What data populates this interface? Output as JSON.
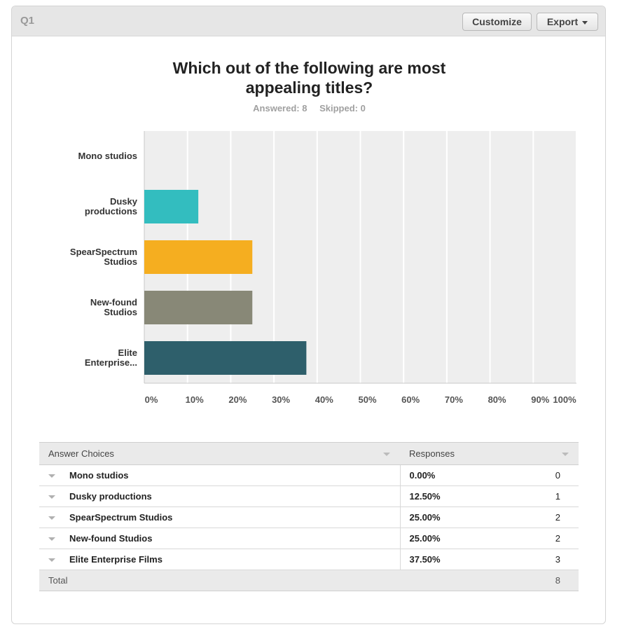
{
  "header": {
    "question_label": "Q1",
    "customize_label": "Customize",
    "export_label": "Export"
  },
  "question": {
    "title_line1": "Which out of the following are most",
    "title_line2": "appealing titles?",
    "answered": "Answered: 8",
    "skipped": "Skipped: 0"
  },
  "chart_data": {
    "type": "bar",
    "orientation": "horizontal",
    "categories": [
      [
        "Mono studios"
      ],
      [
        "Dusky",
        "productions"
      ],
      [
        "SpearSpectrum",
        "Studios"
      ],
      [
        "New-found",
        "Studios"
      ],
      [
        "Elite",
        "Enterprise..."
      ]
    ],
    "values": [
      0,
      12.5,
      25,
      25,
      37.5
    ],
    "colors": [
      "#3fbfbf",
      "#33bdbf",
      "#f5ae20",
      "#888877",
      "#2e5f6b"
    ],
    "xlim": [
      0,
      100
    ],
    "x_ticks": [
      "0%",
      "10%",
      "20%",
      "30%",
      "40%",
      "50%",
      "60%",
      "70%",
      "80%",
      "90%",
      "100%"
    ],
    "grid": true
  },
  "table": {
    "col_choices": "Answer Choices",
    "col_responses": "Responses",
    "rows": [
      {
        "choice": "Mono studios",
        "pct": "0.00%",
        "count": "0"
      },
      {
        "choice": "Dusky productions",
        "pct": "12.50%",
        "count": "1"
      },
      {
        "choice": "SpearSpectrum Studios",
        "pct": "25.00%",
        "count": "2"
      },
      {
        "choice": "New-found Studios",
        "pct": "25.00%",
        "count": "2"
      },
      {
        "choice": "Elite Enterprise Films",
        "pct": "37.50%",
        "count": "3"
      }
    ],
    "total_label": "Total",
    "total_value": "8"
  }
}
